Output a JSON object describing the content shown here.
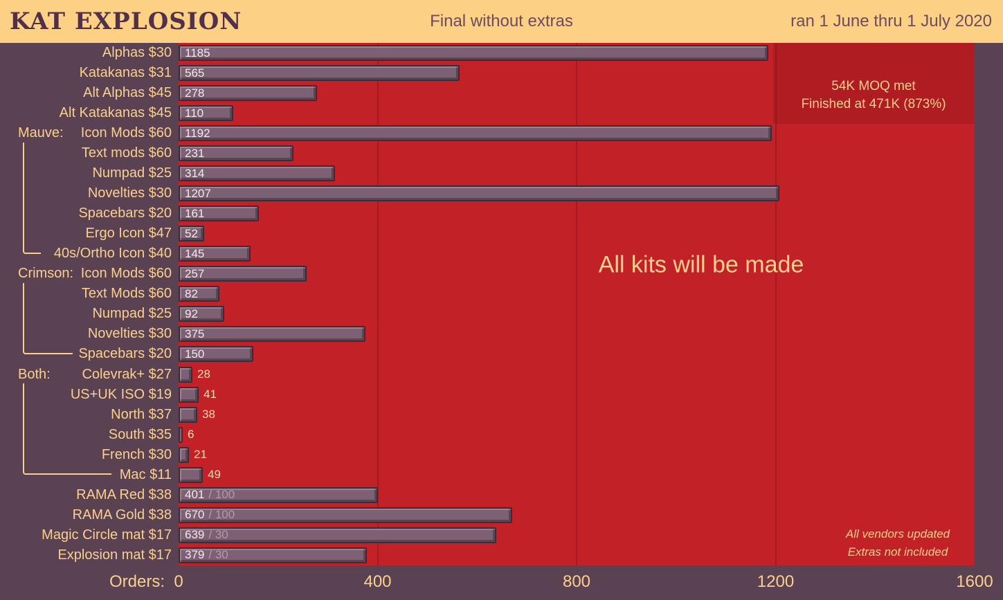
{
  "header": {
    "title": "KAT EXPLOSION",
    "subtitle": "Final without extras",
    "date_range": "ran 1 June thru 1 July 2020"
  },
  "axis": {
    "label": "Orders:",
    "ticks": [
      "0",
      "400",
      "800",
      "1200",
      "1600"
    ],
    "tick_values": [
      0,
      400,
      800,
      1200,
      1600
    ],
    "gridline_values": [
      400,
      800,
      1200
    ]
  },
  "annotations": {
    "moq_line1": "54K MOQ met",
    "moq_line2": "Finished at 471K (873%)",
    "center_message": "All kits will be made",
    "footnote_line1": "All vendors updated",
    "footnote_line2": "Extras not included"
  },
  "colors": {
    "header_bg": "#fcd186",
    "background": "#5a4253",
    "plot_red": "#c32128",
    "bar_fill": "#7d6073",
    "bar_border": "#3e2b3a",
    "accent_yellow": "#fad08f",
    "title_purple": "#52304a",
    "header_text": "#6d4a61"
  },
  "chart_data": {
    "type": "bar",
    "orientation": "horizontal",
    "title": "KAT EXPLOSION — Final without extras",
    "xlabel": "Orders:",
    "xlim": [
      0,
      1600
    ],
    "grid": "vertical at 400/800/1200",
    "legend": "none",
    "categories": [
      "Alphas $30",
      "Katakanas $31",
      "Alt Alphas $45",
      "Alt Katakanas $45",
      "Icon Mods $60",
      "Text mods $60",
      "Numpad $25",
      "Novelties $30",
      "Spacebars $20",
      "Ergo Icon $47",
      "40s/Ortho Icon $40",
      "Icon Mods $60",
      "Text Mods $60",
      "Numpad $25",
      "Novelties $30",
      "Spacebars $20",
      "Colevrak+ $27",
      "US+UK ISO $19",
      "North $37",
      "South $35",
      "French $30",
      "Mac $11",
      "RAMA Red $38",
      "RAMA Gold $38",
      "Magic Circle mat $17",
      "Explosion mat $17"
    ],
    "values": [
      1185,
      565,
      278,
      110,
      1192,
      231,
      314,
      1207,
      161,
      52,
      145,
      257,
      82,
      92,
      375,
      150,
      28,
      41,
      38,
      6,
      21,
      49,
      401,
      670,
      639,
      379
    ],
    "rows": [
      {
        "label": "Alphas",
        "price": "$30",
        "value": 1185
      },
      {
        "label": "Katakanas",
        "price": "$31",
        "value": 565
      },
      {
        "label": "Alt Alphas",
        "price": "$45",
        "value": 278
      },
      {
        "label": "Alt Katakanas",
        "price": "$45",
        "value": 110
      },
      {
        "group": "Mauve:",
        "label": "Icon Mods",
        "price": "$60",
        "value": 1192
      },
      {
        "label": "Text mods",
        "price": "$60",
        "value": 231
      },
      {
        "label": "Numpad",
        "price": "$25",
        "value": 314
      },
      {
        "label": "Novelties",
        "price": "$30",
        "value": 1207
      },
      {
        "label": "Spacebars",
        "price": "$20",
        "value": 161
      },
      {
        "label": "Ergo Icon",
        "price": "$47",
        "value": 52
      },
      {
        "label": "40s/Ortho Icon",
        "price": "$40",
        "value": 145
      },
      {
        "group": "Crimson:",
        "label": "Icon Mods",
        "price": "$60",
        "value": 257
      },
      {
        "label": "Text Mods",
        "price": "$60",
        "value": 82
      },
      {
        "label": "Numpad",
        "price": "$25",
        "value": 92
      },
      {
        "label": "Novelties",
        "price": "$30",
        "value": 375
      },
      {
        "label": "Spacebars",
        "price": "$20",
        "value": 150
      },
      {
        "group": "Both:",
        "label": "Colevrak+",
        "price": "$27",
        "value": 28
      },
      {
        "label": "US+UK ISO",
        "price": "$19",
        "value": 41
      },
      {
        "label": "North",
        "price": "$37",
        "value": 38
      },
      {
        "label": "South",
        "price": "$35",
        "value": 6
      },
      {
        "label": "French",
        "price": "$30",
        "value": 21
      },
      {
        "label": "Mac",
        "price": "$11",
        "value": 49
      },
      {
        "label": "RAMA Red",
        "price": "$38",
        "value": 401,
        "cap": "/ 100"
      },
      {
        "label": "RAMA Gold",
        "price": "$38",
        "value": 670,
        "cap": "/ 100"
      },
      {
        "label": "Magic Circle mat",
        "price": "$17",
        "value": 639,
        "cap": "/ 30"
      },
      {
        "label": "Explosion mat",
        "price": "$17",
        "value": 379,
        "cap": "/ 30"
      }
    ],
    "groups": [
      {
        "name": "Mauve:",
        "start_index": 4,
        "end_index": 10
      },
      {
        "name": "Crimson:",
        "start_index": 11,
        "end_index": 15
      },
      {
        "name": "Both:",
        "start_index": 16,
        "end_index": 21
      }
    ]
  }
}
